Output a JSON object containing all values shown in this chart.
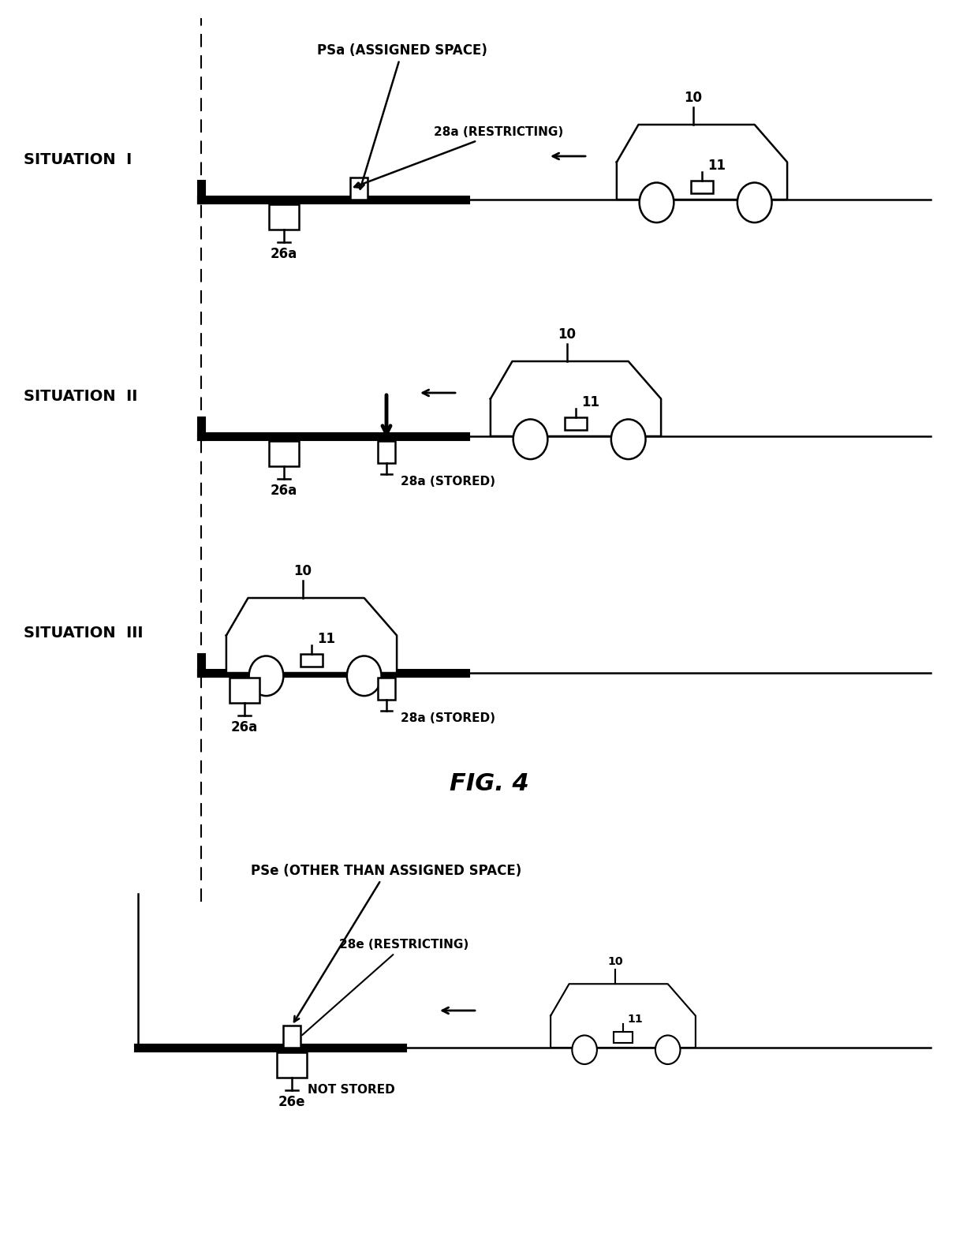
{
  "bg_color": "#ffffff",
  "line_color": "#000000",
  "fig4_label": "FIG. 4",
  "psa_label": "PSa (ASSIGNED SPACE)",
  "pse_label": "PSe (OTHER THAN ASSIGNED SPACE)",
  "sit1_label": "SITUATION  I",
  "sit2_label": "SITUATION  II",
  "sit3_label": "SITUATION  III",
  "label_28a_restricting": "28a (RESTRICTING)",
  "label_28a_stored": "28a (STORED)",
  "label_26a": "26a",
  "label_28e_restricting": "28e (RESTRICTING)",
  "label_26e": "26e",
  "label_not_stored": "NOT STORED"
}
